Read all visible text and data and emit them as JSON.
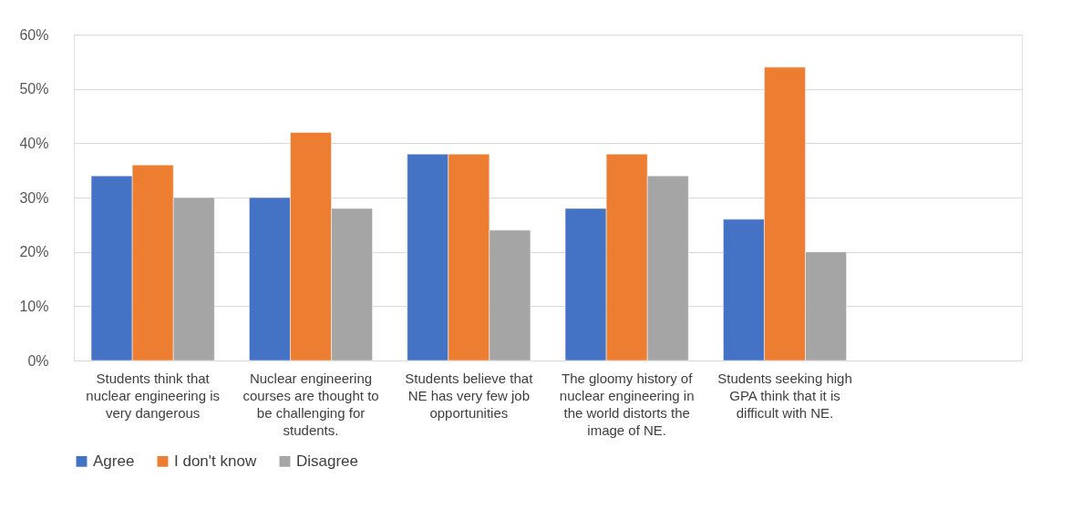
{
  "chart_data": {
    "type": "bar",
    "categories": [
      "Students think that nuclear engineering is very dangerous",
      "Nuclear engineering courses are thought to be challenging for students.",
      "Students believe that NE has very few job opportunities",
      "The gloomy history of nuclear engineering in the world distorts the image of NE.",
      "Students seeking high GPA think that it is difficult with NE.",
      null
    ],
    "series": [
      {
        "name": "Agree",
        "color": "#4472c4",
        "values": [
          34,
          30,
          38,
          28,
          26,
          null
        ]
      },
      {
        "name": "I don't know",
        "color": "#ed7d31",
        "values": [
          36,
          42,
          38,
          38,
          54,
          null
        ]
      },
      {
        "name": "Disagree",
        "color": "#a5a5a5",
        "values": [
          30,
          28,
          24,
          34,
          20,
          null
        ]
      }
    ],
    "ylim": [
      0,
      60
    ],
    "yticks": [
      {
        "value": 0,
        "label": "0%"
      },
      {
        "value": 10,
        "label": "10%"
      },
      {
        "value": 20,
        "label": "20%"
      },
      {
        "value": 30,
        "label": "30%"
      },
      {
        "value": 40,
        "label": "40%"
      },
      {
        "value": 50,
        "label": "50%"
      },
      {
        "value": 60,
        "label": "60%"
      }
    ],
    "grid": "y",
    "legend": "bottom"
  }
}
